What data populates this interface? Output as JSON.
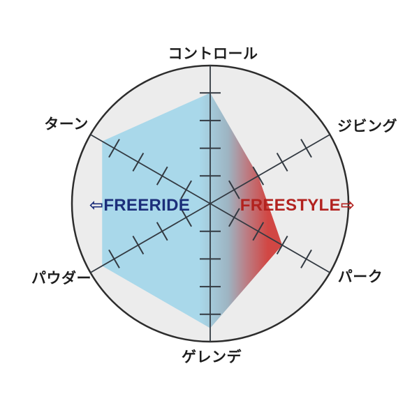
{
  "chart_data": {
    "type": "radar",
    "title": "",
    "description": "Snowboard character radar chart: freeride (left, blue) vs freestyle (right, red)",
    "axes": [
      {
        "label": "コントロール",
        "angle_deg": 90,
        "value": 4
      },
      {
        "label": "ジビング",
        "angle_deg": 30,
        "value": 2
      },
      {
        "label": "パーク",
        "angle_deg": -30,
        "value": 3
      },
      {
        "label": "ゲレンデ",
        "angle_deg": -90,
        "value": 4.5
      },
      {
        "label": "パウダー",
        "angle_deg": 210,
        "value": 4.5
      },
      {
        "label": "ターン",
        "angle_deg": 150,
        "value": 4.5
      }
    ],
    "scale": {
      "min": 0,
      "max": 5,
      "tick_levels": [
        1,
        2,
        3,
        4
      ]
    },
    "legend": {
      "left": {
        "arrow": "⇦",
        "label": "FREERIDE",
        "color": "#1c2e7a"
      },
      "right": {
        "label": "FREESTYLE",
        "arrow": "⇨",
        "color": "#b2221f"
      }
    },
    "colors": {
      "page_background": "#ffffff",
      "circle_fill": "#ececec",
      "circle_stroke": "#2d2d2d",
      "grid_line": "#333a42",
      "fill_blue": "#a9d8ea",
      "fill_red": "#d14744"
    },
    "fill_gradient": {
      "direction": "left-to-right",
      "stops": [
        {
          "offset": 0,
          "color": "#a9d8ea"
        },
        {
          "offset": 0.54,
          "color": "#a9d8ea"
        },
        {
          "offset": 0.7,
          "color": "#9db4c2"
        },
        {
          "offset": 0.8,
          "color": "#bb7e85"
        },
        {
          "offset": 0.92,
          "color": "#d14744"
        },
        {
          "offset": 1,
          "color": "#d14744"
        }
      ]
    },
    "legend_position": "center-horizontal",
    "grid": "ticks-on-axes"
  }
}
